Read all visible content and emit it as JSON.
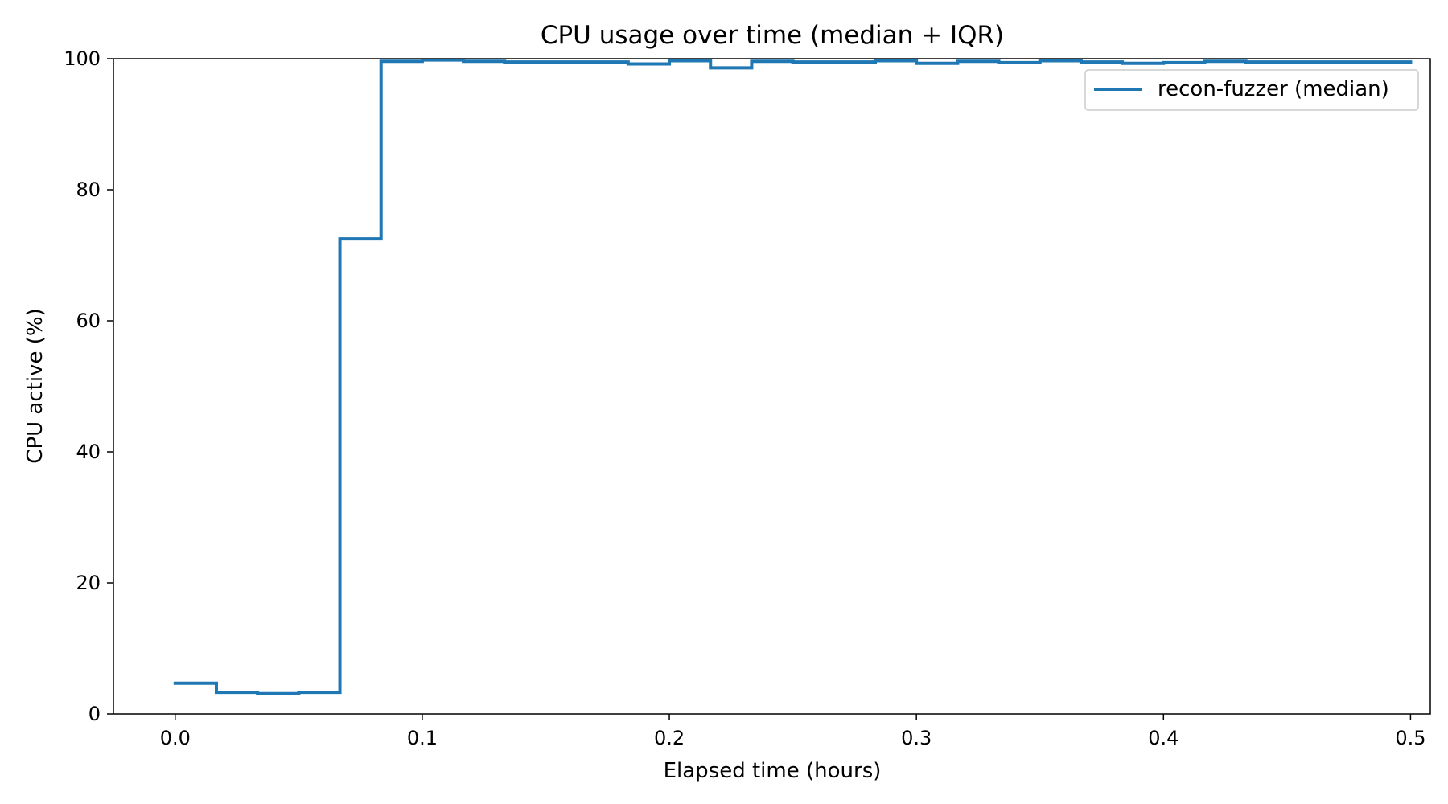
{
  "chart_data": {
    "type": "line",
    "title": "CPU usage over time (median + IQR)",
    "xlabel": "Elapsed time (hours)",
    "ylabel": "CPU active (%)",
    "xlim": [
      -0.025,
      0.508
    ],
    "ylim": [
      0,
      100
    ],
    "xticks": [
      "0.0",
      "0.1",
      "0.2",
      "0.3",
      "0.4",
      "0.5"
    ],
    "yticks": [
      "0",
      "20",
      "40",
      "60",
      "80",
      "100"
    ],
    "grid": false,
    "legend_position": "top-right",
    "step": "post",
    "series": [
      {
        "name": "recon-fuzzer (median)",
        "color": "#1f77b4",
        "x": [
          0.0,
          0.01667,
          0.03333,
          0.05,
          0.06667,
          0.08333,
          0.1,
          0.11667,
          0.13333,
          0.15,
          0.16667,
          0.18333,
          0.2,
          0.21667,
          0.23333,
          0.25,
          0.26667,
          0.28333,
          0.3,
          0.31667,
          0.33333,
          0.35,
          0.36667,
          0.38333,
          0.4,
          0.41667,
          0.43333,
          0.45,
          0.46667,
          0.48333
        ],
        "y": [
          4.7,
          3.3,
          3.1,
          3.3,
          72.5,
          99.6,
          99.8,
          99.6,
          99.5,
          99.5,
          99.5,
          99.2,
          99.7,
          98.6,
          99.6,
          99.5,
          99.5,
          99.7,
          99.3,
          99.6,
          99.4,
          99.7,
          99.5,
          99.3,
          99.4,
          99.6,
          99.5,
          99.5,
          99.5,
          99.5
        ]
      }
    ]
  }
}
